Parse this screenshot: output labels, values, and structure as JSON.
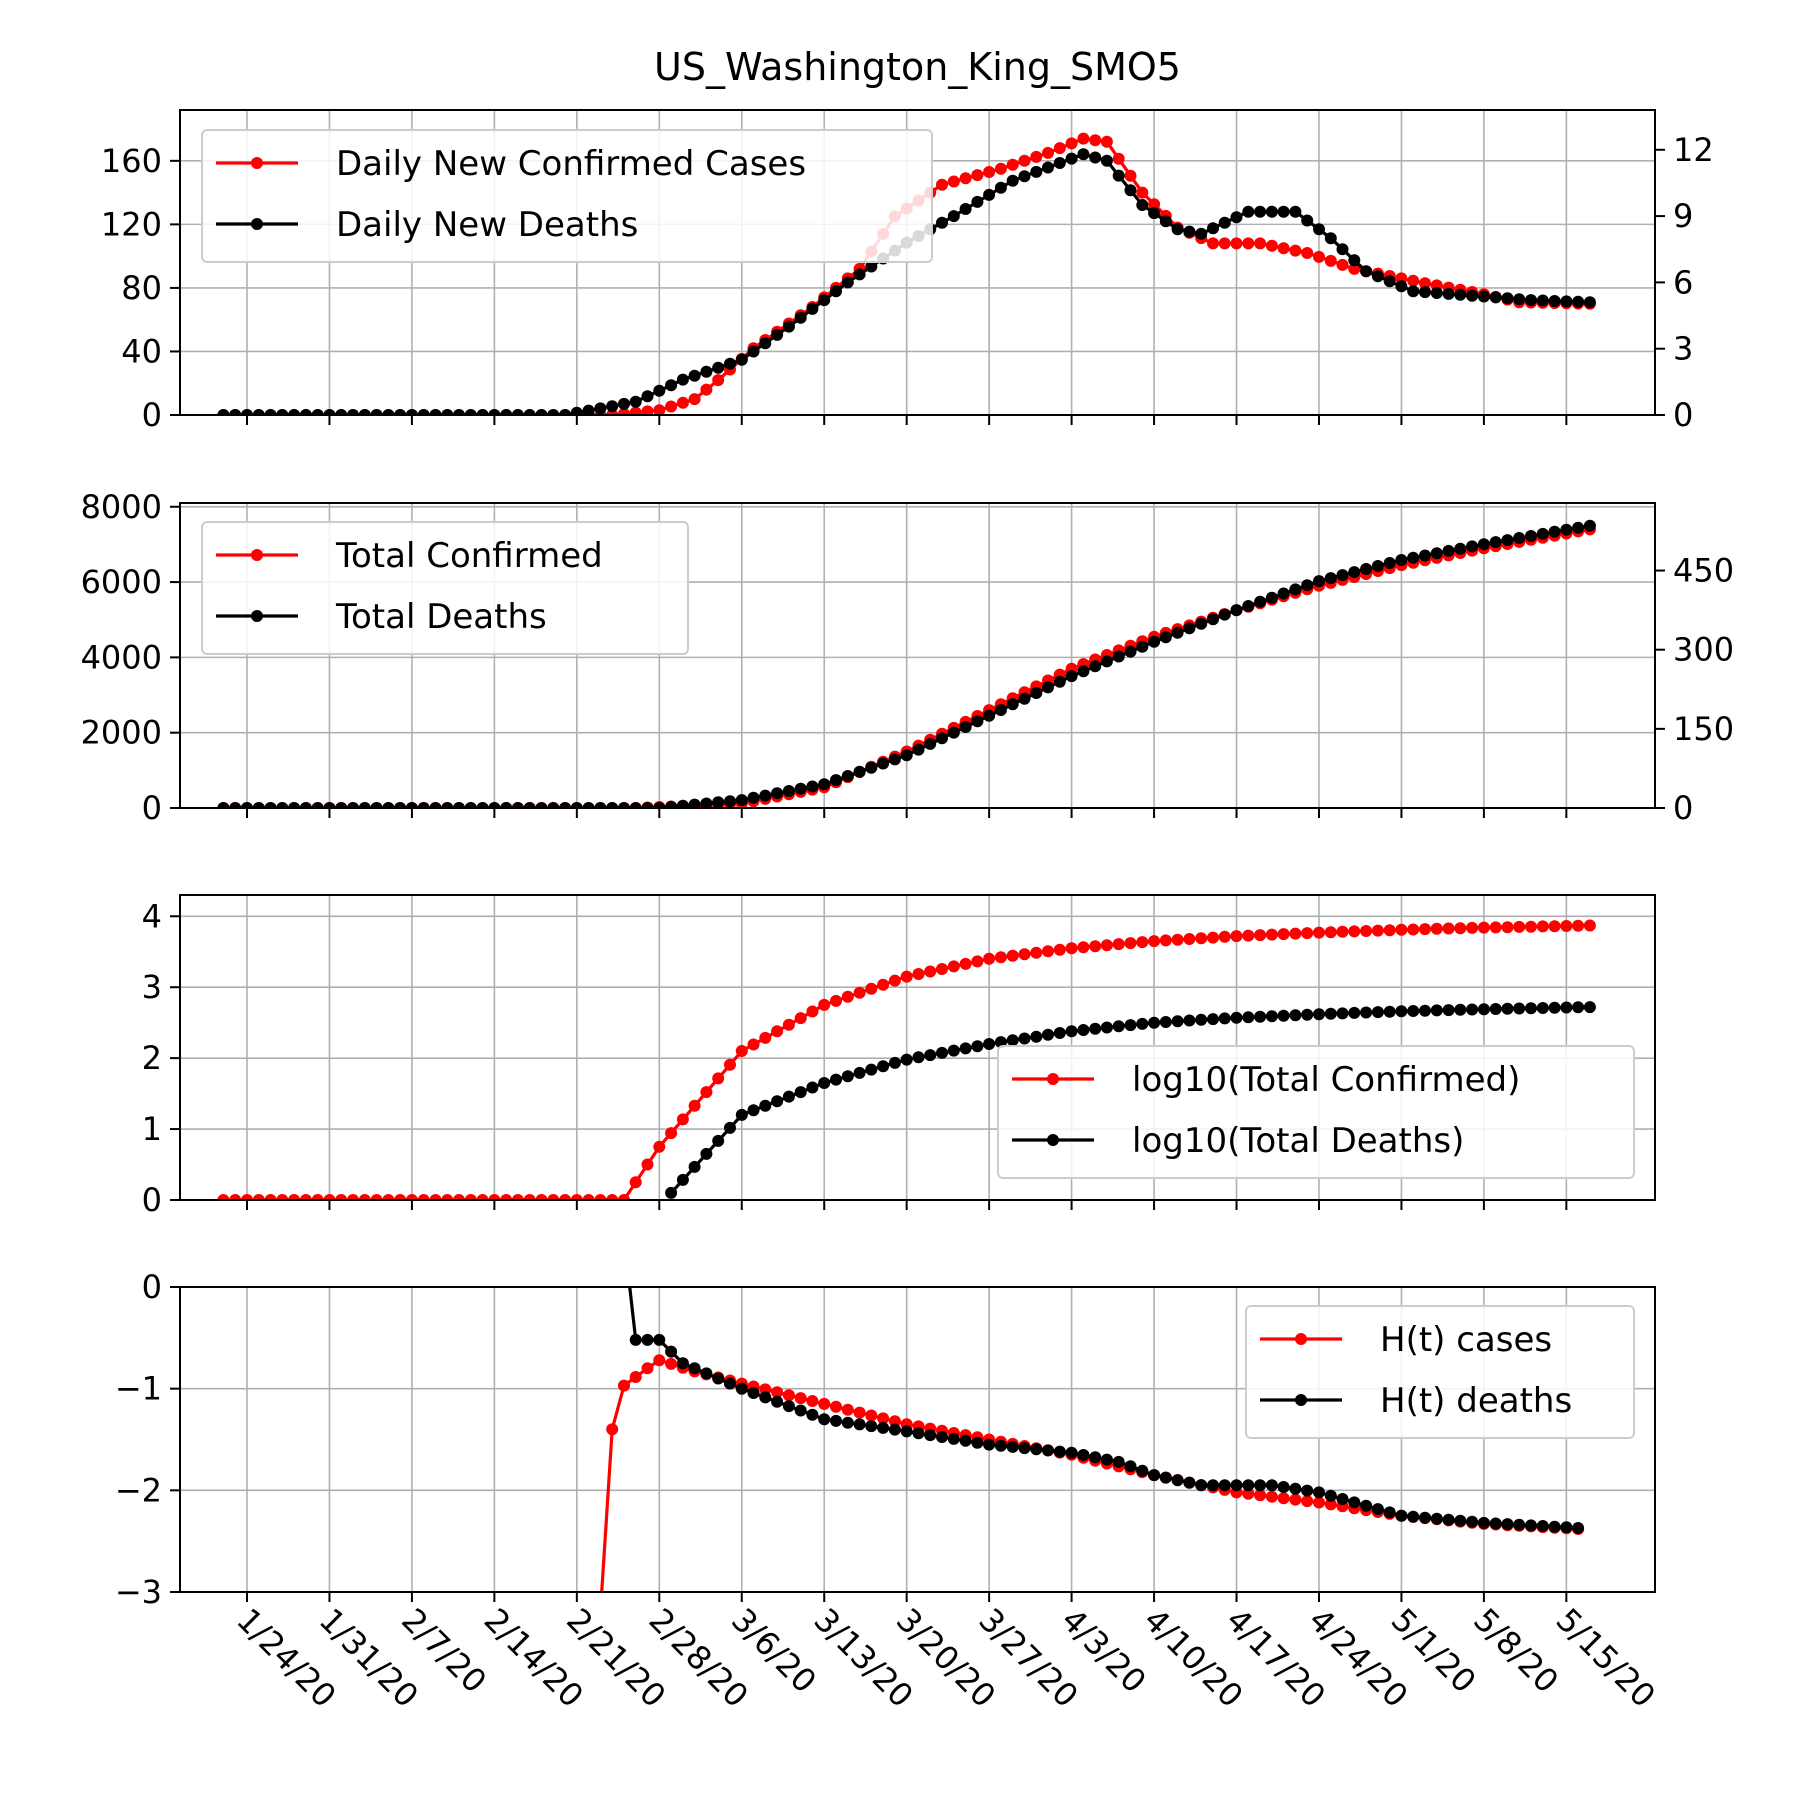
{
  "title": "US_Washington_King_SMO5",
  "x_tick_labels": [
    "1/24/20",
    "1/31/20",
    "2/7/20",
    "2/14/20",
    "2/21/20",
    "2/28/20",
    "3/6/20",
    "3/13/20",
    "3/20/20",
    "3/27/20",
    "4/3/20",
    "4/10/20",
    "4/17/20",
    "4/24/20",
    "5/1/20",
    "5/8/20",
    "5/15/20"
  ],
  "colors": {
    "cases": "#ff0000",
    "deaths": "#000000",
    "grid": "#b0b0b0"
  },
  "chart_data": [
    {
      "type": "line",
      "panel": "daily",
      "x_start": "1/22/20",
      "x_end": "5/17/20",
      "grid": true,
      "legend_placement": "upper-left",
      "left_axis": {
        "ylim": [
          0,
          192
        ],
        "ticks": [
          0,
          40,
          80,
          120,
          160
        ]
      },
      "right_axis": {
        "ylim": [
          0,
          13.8
        ],
        "ticks": [
          0,
          3,
          6,
          9,
          12
        ]
      },
      "series": [
        {
          "name": "Daily New Confirmed Cases",
          "axis": "left",
          "color": "#ff0000",
          "anchors": [
            [
              "1/22/20",
              0
            ],
            [
              "2/24/20",
              0
            ],
            [
              "2/28/20",
              3
            ],
            [
              "3/2/20",
              10
            ],
            [
              "3/4/20",
              22
            ],
            [
              "3/7/20",
              42
            ],
            [
              "3/12/20",
              68
            ],
            [
              "3/16/20",
              92
            ],
            [
              "3/19/20",
              125
            ],
            [
              "3/23/20",
              145
            ],
            [
              "3/28/20",
              155
            ],
            [
              "4/1/20",
              165
            ],
            [
              "4/4/20",
              174
            ],
            [
              "4/6/20",
              172
            ],
            [
              "4/9/20",
              140
            ],
            [
              "4/12/20",
              118
            ],
            [
              "4/15/20",
              108
            ],
            [
              "4/19/20",
              108
            ],
            [
              "4/23/20",
              102
            ],
            [
              "4/27/20",
              92
            ],
            [
              "5/3/20",
              83
            ],
            [
              "5/8/20",
              76
            ],
            [
              "5/11/20",
              71
            ],
            [
              "5/17/20",
              70
            ]
          ]
        },
        {
          "name": "Daily New Deaths",
          "axis": "right",
          "color": "#000000",
          "anchors": [
            [
              "1/22/20",
              0
            ],
            [
              "2/20/20",
              0
            ],
            [
              "2/26/20",
              0.6
            ],
            [
              "3/1/20",
              1.6
            ],
            [
              "3/6/20",
              2.5
            ],
            [
              "3/10/20",
              4.0
            ],
            [
              "3/15/20",
              6.0
            ],
            [
              "3/20/20",
              7.8
            ],
            [
              "3/24/20",
              9.0
            ],
            [
              "3/29/20",
              10.6
            ],
            [
              "4/4/20",
              11.8
            ],
            [
              "4/6/20",
              11.5
            ],
            [
              "4/9/20",
              9.5
            ],
            [
              "4/12/20",
              8.4
            ],
            [
              "4/14/20",
              8.2
            ],
            [
              "4/18/20",
              9.2
            ],
            [
              "4/22/20",
              9.2
            ],
            [
              "4/25/20",
              8.0
            ],
            [
              "4/28/20",
              6.5
            ],
            [
              "5/2/20",
              5.6
            ],
            [
              "5/7/20",
              5.4
            ],
            [
              "5/12/20",
              5.2
            ],
            [
              "5/17/20",
              5.1
            ]
          ]
        }
      ]
    },
    {
      "type": "line",
      "panel": "total",
      "x_start": "1/22/20",
      "x_end": "5/17/20",
      "grid": true,
      "legend_placement": "upper-left",
      "left_axis": {
        "ylim": [
          0,
          8100
        ],
        "ticks": [
          0,
          2000,
          4000,
          6000,
          8000
        ]
      },
      "right_axis": {
        "ylim": [
          0,
          578
        ],
        "ticks": [
          0,
          150,
          300,
          450
        ]
      },
      "series": [
        {
          "name": "Total Confirmed",
          "axis": "left",
          "color": "#ff0000",
          "anchors": [
            [
              "1/22/20",
              0
            ],
            [
              "2/26/20",
              0
            ],
            [
              "3/6/20",
              120
            ],
            [
              "3/13/20",
              550
            ],
            [
              "3/20/20",
              1500
            ],
            [
              "3/27/20",
              2600
            ],
            [
              "4/3/20",
              3700
            ],
            [
              "4/10/20",
              4550
            ],
            [
              "4/17/20",
              5250
            ],
            [
              "4/24/20",
              5900
            ],
            [
              "5/1/20",
              6450
            ],
            [
              "5/8/20",
              6900
            ],
            [
              "5/17/20",
              7400
            ]
          ]
        },
        {
          "name": "Total Deaths",
          "axis": "right",
          "color": "#000000",
          "anchors": [
            [
              "1/22/20",
              0
            ],
            [
              "2/28/20",
              0
            ],
            [
              "3/6/20",
              15
            ],
            [
              "3/13/20",
              45
            ],
            [
              "3/20/20",
              100
            ],
            [
              "3/27/20",
              175
            ],
            [
              "4/3/20",
              250
            ],
            [
              "4/10/20",
              315
            ],
            [
              "4/17/20",
              375
            ],
            [
              "4/24/20",
              430
            ],
            [
              "5/1/20",
              470
            ],
            [
              "5/8/20",
              500
            ],
            [
              "5/17/20",
              535
            ]
          ]
        }
      ]
    },
    {
      "type": "line",
      "panel": "log",
      "x_start": "1/22/20",
      "x_end": "5/17/20",
      "grid": true,
      "legend_placement": "center-right",
      "left_axis": {
        "ylim": [
          0,
          4.3
        ],
        "ticks": [
          0,
          1,
          2,
          3,
          4
        ]
      },
      "series": [
        {
          "name": "log10(Total Confirmed)",
          "axis": "left",
          "color": "#ff0000",
          "anchors": [
            [
              "1/22/20",
              0
            ],
            [
              "2/25/20",
              0
            ],
            [
              "2/28/20",
              0.75
            ],
            [
              "3/6/20",
              2.1
            ],
            [
              "3/13/20",
              2.75
            ],
            [
              "3/20/20",
              3.15
            ],
            [
              "3/27/20",
              3.4
            ],
            [
              "4/3/20",
              3.55
            ],
            [
              "4/10/20",
              3.65
            ],
            [
              "4/17/20",
              3.72
            ],
            [
              "4/24/20",
              3.77
            ],
            [
              "5/1/20",
              3.81
            ],
            [
              "5/8/20",
              3.84
            ],
            [
              "5/17/20",
              3.87
            ]
          ]
        },
        {
          "name": "log10(Total Deaths)",
          "axis": "left",
          "color": "#000000",
          "start": "2/29/20",
          "anchors": [
            [
              "2/29/20",
              0.1
            ],
            [
              "3/6/20",
              1.2
            ],
            [
              "3/13/20",
              1.65
            ],
            [
              "3/20/20",
              1.98
            ],
            [
              "3/27/20",
              2.2
            ],
            [
              "4/3/20",
              2.38
            ],
            [
              "4/10/20",
              2.5
            ],
            [
              "4/17/20",
              2.57
            ],
            [
              "4/24/20",
              2.62
            ],
            [
              "5/1/20",
              2.66
            ],
            [
              "5/8/20",
              2.69
            ],
            [
              "5/17/20",
              2.72
            ]
          ]
        }
      ]
    },
    {
      "type": "line",
      "panel": "hazard",
      "x_start": "1/22/20",
      "x_end": "5/17/20",
      "grid": true,
      "legend_placement": "upper-right",
      "left_axis": {
        "ylim": [
          -3,
          0
        ],
        "ticks": [
          0,
          -1,
          -2,
          -3
        ]
      },
      "series": [
        {
          "name": "H(t) cases",
          "axis": "left",
          "color": "#ff0000",
          "start": "2/23/20",
          "anchors": [
            [
              "2/23/20",
              -3.2
            ],
            [
              "2/24/20",
              -1.4
            ],
            [
              "2/25/20",
              -0.97
            ],
            [
              "2/27/20",
              -0.8
            ],
            [
              "2/28/20",
              -0.72
            ],
            [
              "3/2/20",
              -0.83
            ],
            [
              "3/6/20",
              -0.95
            ],
            [
              "3/13/20",
              -1.15
            ],
            [
              "3/20/20",
              -1.35
            ],
            [
              "3/27/20",
              -1.5
            ],
            [
              "4/3/20",
              -1.65
            ],
            [
              "4/10/20",
              -1.85
            ],
            [
              "4/17/20",
              -2.02
            ],
            [
              "4/24/20",
              -2.12
            ],
            [
              "5/1/20",
              -2.25
            ],
            [
              "5/8/20",
              -2.33
            ],
            [
              "5/16/20",
              -2.38
            ]
          ]
        },
        {
          "name": "H(t) deaths",
          "axis": "left",
          "color": "#000000",
          "start": "2/25/20",
          "anchors": [
            [
              "2/25/20",
              0.5
            ],
            [
              "2/26/20",
              -0.52
            ],
            [
              "2/28/20",
              -0.52
            ],
            [
              "3/1/20",
              -0.75
            ],
            [
              "3/6/20",
              -1.0
            ],
            [
              "3/13/20",
              -1.3
            ],
            [
              "3/20/20",
              -1.42
            ],
            [
              "3/27/20",
              -1.55
            ],
            [
              "4/3/20",
              -1.63
            ],
            [
              "4/7/20",
              -1.72
            ],
            [
              "4/10/20",
              -1.85
            ],
            [
              "4/14/20",
              -1.95
            ],
            [
              "4/20/20",
              -1.95
            ],
            [
              "4/24/20",
              -2.02
            ],
            [
              "5/1/20",
              -2.25
            ],
            [
              "5/8/20",
              -2.32
            ],
            [
              "5/16/20",
              -2.37
            ]
          ]
        }
      ]
    }
  ]
}
